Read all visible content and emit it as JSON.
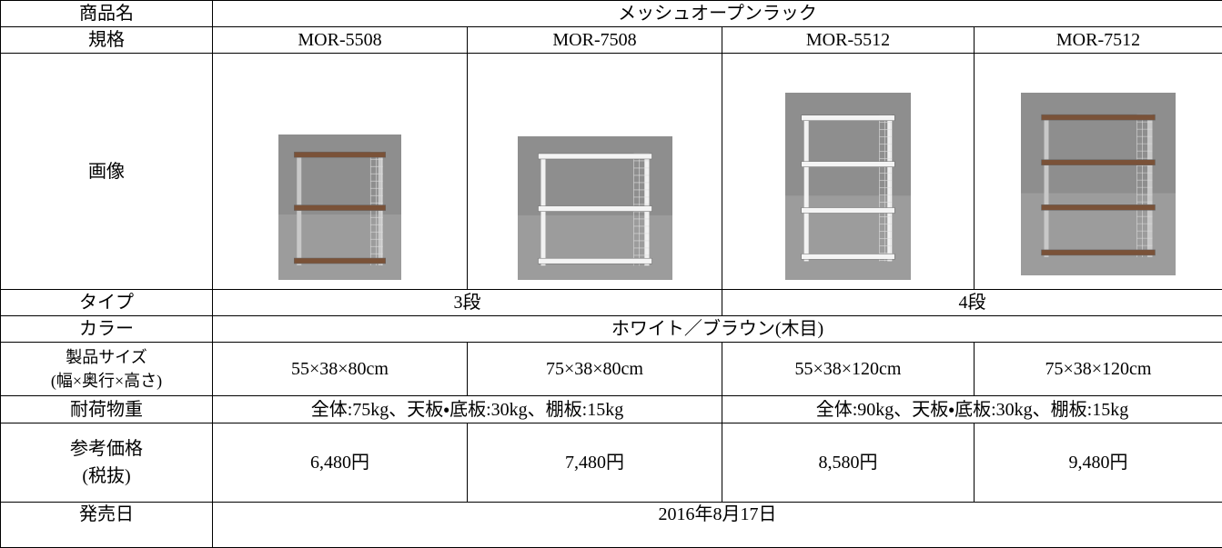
{
  "table": {
    "rows": [
      [
        "商品名",
        "メッシュオープンラック"
      ],
      [
        "規格",
        "MOR-5508",
        "MOR-7508",
        "MOR-5512",
        "MOR-7512"
      ],
      [
        "画像"
      ],
      [
        "タイプ",
        "3段",
        "4段"
      ],
      [
        "カラー",
        "ホワイト／ブラウン(木目)"
      ],
      [
        "製品サイズ\n(幅×奥行×高さ)",
        "55×38×80cm",
        "75×38×80cm",
        "55×38×120cm",
        "75×38×120cm"
      ],
      [
        "耐荷物重",
        "全体:75kg、天板・底板:30kg、棚板:15kg",
        "全体:90kg、天板・底板:30kg、棚板:15kg"
      ],
      [
        "参考価格\n(税抜)",
        "6,480円",
        "7,480円",
        "8,580円",
        "9,480円"
      ],
      [
        "発売日",
        "2016年8月17日"
      ]
    ]
  }
}
